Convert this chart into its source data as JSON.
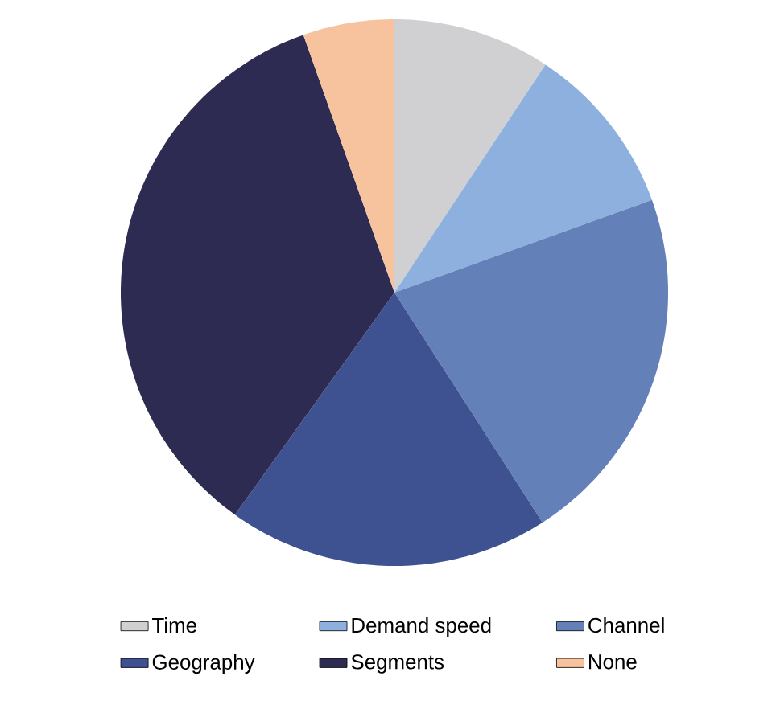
{
  "chart_data": {
    "type": "pie",
    "categories": [
      "Time",
      "Demand speed",
      "Channel",
      "Geography",
      "Segments",
      "None"
    ],
    "values": [
      9.3,
      10.2,
      21.4,
      19.0,
      34.7,
      5.4
    ],
    "colors": [
      "#d0d0d2",
      "#8db0de",
      "#6480b8",
      "#3e5190",
      "#2e2b52",
      "#f6c39e"
    ],
    "legend": "bottom"
  }
}
